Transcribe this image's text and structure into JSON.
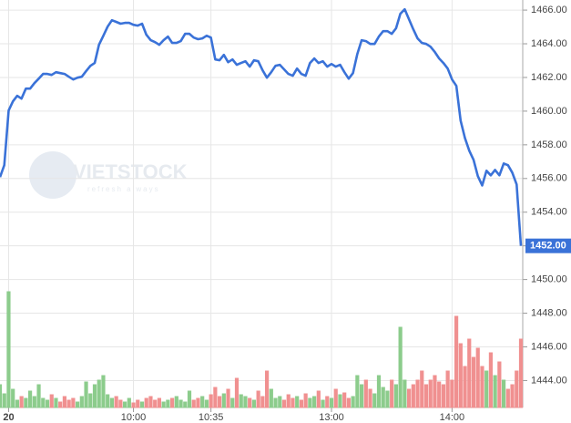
{
  "chart_data": [
    {
      "type": "line",
      "categories": [
        null,
        null,
        "20",
        null,
        null,
        null,
        null,
        null,
        null,
        null,
        null,
        null,
        null,
        null,
        null,
        null,
        null,
        null,
        null,
        null,
        null,
        null,
        null,
        null,
        null,
        null,
        null,
        null,
        null,
        null,
        null,
        "10:00",
        null,
        null,
        null,
        null,
        null,
        null,
        null,
        null,
        null,
        null,
        null,
        null,
        null,
        null,
        null,
        null,
        null,
        "10:35",
        null,
        null,
        null,
        null,
        null,
        null,
        null,
        null,
        null,
        null,
        null,
        null,
        null,
        null,
        null,
        null,
        null,
        null,
        null,
        null,
        null,
        null,
        null,
        null,
        null,
        null,
        null,
        "13:00",
        null,
        null,
        null,
        null,
        null,
        null,
        null,
        null,
        null,
        null,
        null,
        null,
        null,
        null,
        null,
        null,
        null,
        null,
        null,
        null,
        null,
        null,
        null,
        null,
        null,
        null,
        null,
        "14:00",
        null,
        null,
        null,
        null,
        null,
        null,
        null,
        null,
        null,
        null,
        null,
        null,
        null,
        null,
        null,
        null
      ],
      "series": [
        {
          "color": "#3a72d8",
          "values": [
            1456.08,
            1456.79,
            1460.04,
            1460.58,
            1460.91,
            1460.74,
            1461.34,
            1461.34,
            1461.66,
            1461.93,
            1462.21,
            1462.21,
            1462.15,
            1462.31,
            1462.26,
            1462.21,
            1462.04,
            1461.88,
            1461.99,
            1462.04,
            1462.37,
            1462.69,
            1462.86,
            1463.94,
            1464.48,
            1465.02,
            1465.4,
            1465.3,
            1465.19,
            1465.24,
            1465.24,
            1465.13,
            1465.08,
            1465.19,
            1464.54,
            1464.21,
            1464.1,
            1463.94,
            1464.21,
            1464.43,
            1464.05,
            1464.05,
            1464.16,
            1464.59,
            1464.59,
            1464.37,
            1464.27,
            1464.32,
            1464.48,
            1464.37,
            1463.07,
            1463.02,
            1463.34,
            1462.91,
            1463.07,
            1462.75,
            1462.86,
            1462.96,
            1462.64,
            1463.02,
            1462.96,
            1462.42,
            1461.99,
            1462.31,
            1462.69,
            1462.75,
            1462.48,
            1462.21,
            1462.1,
            1462.53,
            1462.21,
            1462.1,
            1462.86,
            1463.13,
            1462.86,
            1462.96,
            1462.64,
            1462.8,
            1462.64,
            1462.75,
            1462.31,
            1461.93,
            1462.26,
            1463.4,
            1464.21,
            1464.16,
            1463.99,
            1463.99,
            1464.43,
            1464.75,
            1464.75,
            1464.59,
            1464.92,
            1465.78,
            1466.05,
            1465.46,
            1464.86,
            1464.32,
            1464.05,
            1463.99,
            1463.83,
            1463.51,
            1463.13,
            1462.86,
            1462.53,
            1461.88,
            1461.5,
            1459.44,
            1458.41,
            1457.65,
            1457.11,
            1456.14,
            1455.59,
            1456.46,
            1456.19,
            1456.51,
            1456.19,
            1456.89,
            1456.79,
            1456.35,
            1455.65,
            1452.0
          ]
        }
      ],
      "ylim": [
        1442.4,
        1466.6
      ],
      "yticks": [
        {
          "value": 1444,
          "label": "1444.00"
        },
        {
          "value": 1446,
          "label": "1446.00"
        },
        {
          "value": 1448,
          "label": "1448.00"
        },
        {
          "value": 1450,
          "label": "1450.00"
        },
        {
          "value": 1452,
          "label": "1452.00"
        },
        {
          "value": 1454,
          "label": "1454.00"
        },
        {
          "value": 1456,
          "label": "1456.00"
        },
        {
          "value": 1458,
          "label": "1458.00"
        },
        {
          "value": 1460,
          "label": "1460.00"
        },
        {
          "value": 1462,
          "label": "1462.00"
        },
        {
          "value": 1464,
          "label": "1464.00"
        },
        {
          "value": 1466,
          "label": "1466.00"
        }
      ],
      "last_price": {
        "value": 1452,
        "label": "1452.00",
        "color": "#3a72d8"
      },
      "grid": true,
      "watermark": {
        "title": "VIETSTOCK",
        "tagline": "refresh always"
      }
    },
    {
      "type": "bar",
      "values": [
        25,
        15,
        127,
        20,
        8,
        12,
        10,
        18,
        12,
        25,
        10,
        8,
        14,
        10,
        6,
        12,
        8,
        10,
        6,
        12,
        28,
        15,
        25,
        30,
        35,
        14,
        10,
        12,
        8,
        6,
        10,
        5,
        8,
        6,
        10,
        12,
        8,
        10,
        6,
        8,
        10,
        12,
        8,
        6,
        18,
        8,
        10,
        12,
        8,
        14,
        22,
        12,
        15,
        20,
        10,
        32,
        14,
        12,
        10,
        8,
        18,
        12,
        40,
        20,
        10,
        12,
        8,
        14,
        10,
        12,
        8,
        15,
        10,
        12,
        18,
        8,
        12,
        10,
        20,
        14,
        16,
        10,
        12,
        35,
        25,
        30,
        20,
        15,
        35,
        22,
        18,
        30,
        25,
        88,
        30,
        20,
        25,
        30,
        40,
        25,
        30,
        35,
        28,
        25,
        40,
        30,
        100,
        70,
        45,
        75,
        55,
        65,
        45,
        40,
        60,
        35,
        50,
        30,
        20,
        25,
        40,
        75
      ],
      "up_color": "#8ccc8c",
      "down_color": "#f09090"
    }
  ]
}
